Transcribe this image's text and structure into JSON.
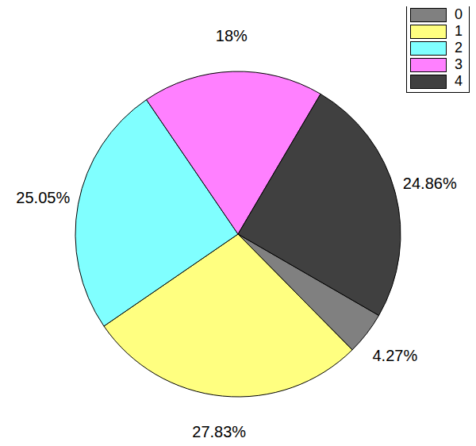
{
  "chart_data": {
    "type": "pie",
    "categories": [
      "0",
      "1",
      "2",
      "3",
      "4"
    ],
    "values": [
      4.27,
      27.83,
      25.05,
      18,
      24.86
    ],
    "value_labels": [
      "4.27%",
      "27.83%",
      "25.05%",
      "18%",
      "24.86%"
    ],
    "colors": [
      "#808080",
      "#ffff80",
      "#80ffff",
      "#ff80ff",
      "#404040"
    ],
    "data_labels": true,
    "legend": "upper right"
  }
}
